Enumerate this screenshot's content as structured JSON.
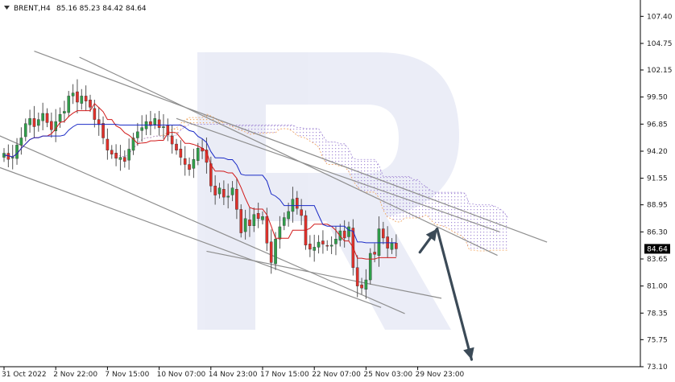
{
  "header": {
    "symbol": "BRENT,H4",
    "ohlc": "85.16 85.23 84.42 84.64"
  },
  "chart_data": {
    "type": "candlestick",
    "title": "BRENT,H4 85.16 85.23 84.42 84.64",
    "ylim": [
      73.1,
      109.0
    ],
    "y_ticks": [
      "107.40",
      "104.75",
      "102.15",
      "99.50",
      "96.85",
      "94.20",
      "91.55",
      "88.95",
      "86.30",
      "83.65",
      "81.00",
      "78.35",
      "75.75",
      "73.10"
    ],
    "y_tick_values": [
      107.4,
      104.75,
      102.15,
      99.5,
      96.85,
      94.2,
      91.55,
      88.95,
      86.3,
      83.65,
      81.0,
      78.35,
      75.75,
      73.1
    ],
    "x_ticks": [
      "31 Oct 2022",
      "2 Nov 22:00",
      "7 Nov 15:00",
      "10 Nov 07:00",
      "14 Nov 23:00",
      "17 Nov 15:00",
      "22 Nov 07:00",
      "25 Nov 03:00",
      "29 Nov 23:00"
    ],
    "x_tick_bars": [
      0,
      12,
      24,
      36,
      48,
      60,
      72,
      84,
      96
    ],
    "current_price": "84.64",
    "current_price_value": 84.64,
    "closes": [
      94.0,
      93.4,
      93.6,
      94.8,
      95.5,
      96.9,
      97.4,
      96.6,
      97.3,
      97.9,
      97.0,
      96.3,
      97.1,
      97.8,
      98.1,
      99.6,
      99.9,
      99.0,
      99.6,
      99.1,
      98.5,
      97.3,
      96.8,
      95.5,
      94.3,
      93.9,
      93.5,
      93.6,
      93.2,
      94.4,
      95.5,
      96.1,
      96.5,
      97.1,
      96.7,
      97.4,
      96.5,
      96.6,
      95.8,
      94.9,
      94.3,
      93.6,
      92.9,
      92.4,
      93.4,
      94.5,
      94.2,
      93.1,
      90.8,
      89.9,
      90.6,
      89.7,
      89.8,
      90.6,
      88.5,
      86.2,
      87.6,
      86.9,
      88.0,
      87.6,
      87.8,
      85.2,
      83.3,
      85.6,
      86.8,
      87.7,
      88.3,
      89.5,
      88.6,
      87.9,
      85.0,
      84.6,
      84.8,
      85.3,
      85.1,
      84.9,
      85.0,
      85.6,
      86.4,
      85.7,
      86.8,
      82.8,
      81.0,
      80.8,
      81.6,
      84.2,
      84.1,
      86.6,
      85.7,
      84.7,
      85.2,
      84.64
    ],
    "annotations": [
      "triangle pattern lines",
      "forecast arrow up to 86.6",
      "forecast arrow down to 73.8"
    ],
    "legend": "none",
    "grid": "off"
  }
}
